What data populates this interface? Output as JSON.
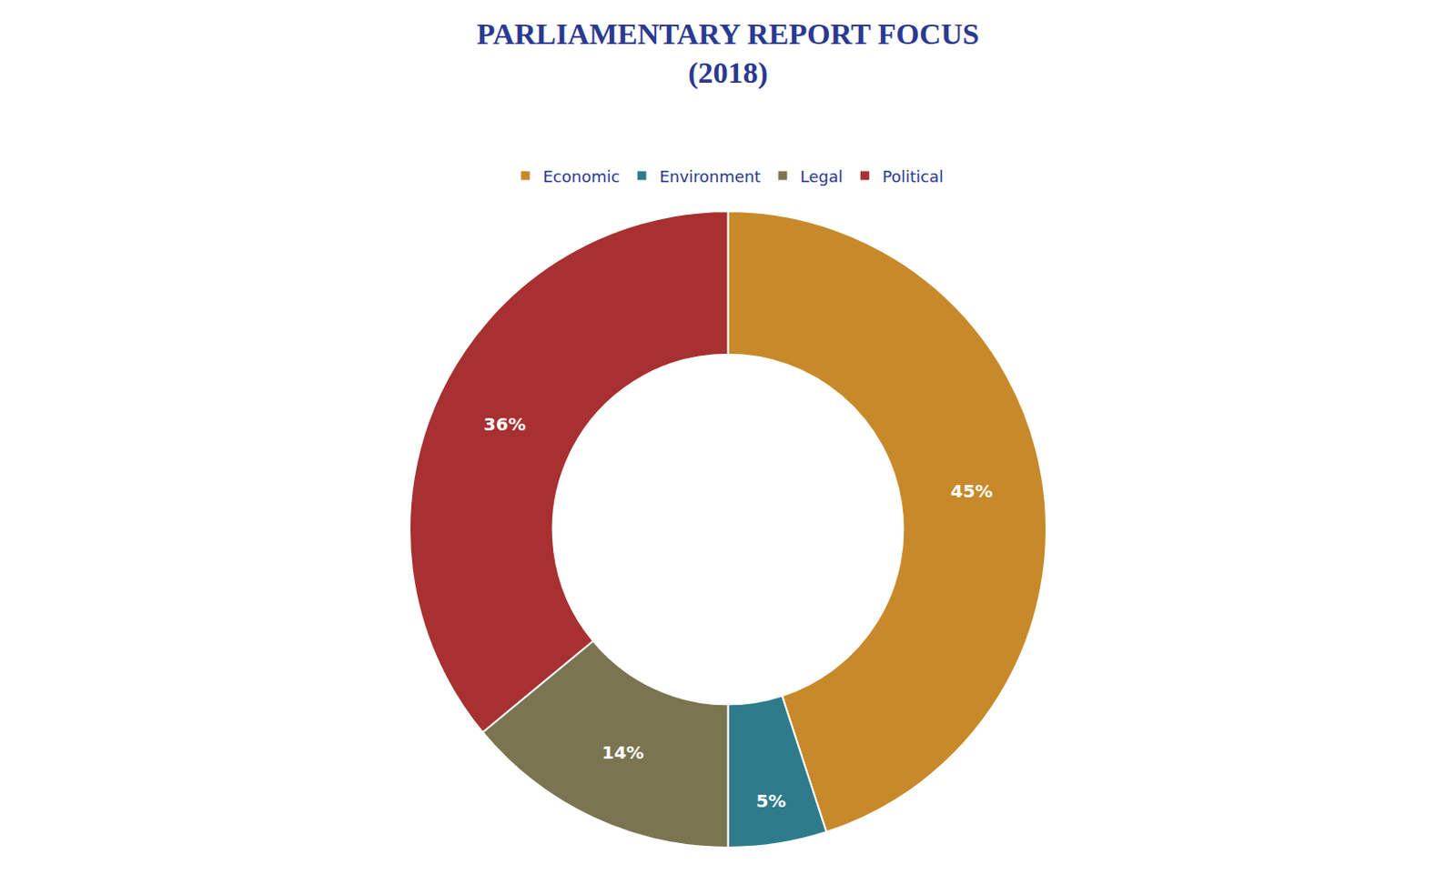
{
  "chart_data": {
    "type": "pie",
    "title": "PARLIAMENTARY REPORT FOCUS",
    "subtitle": "(2018)",
    "categories": [
      "Economic",
      "Environment",
      "Legal",
      "Political"
    ],
    "values": [
      45,
      5,
      14,
      36
    ],
    "value_labels": [
      "45%",
      "5%",
      "14%",
      "36%"
    ],
    "colors": [
      "#C8892A",
      "#2E7B8C",
      "#7A7550",
      "#A83030"
    ],
    "data_labels": true,
    "legend": "top"
  }
}
